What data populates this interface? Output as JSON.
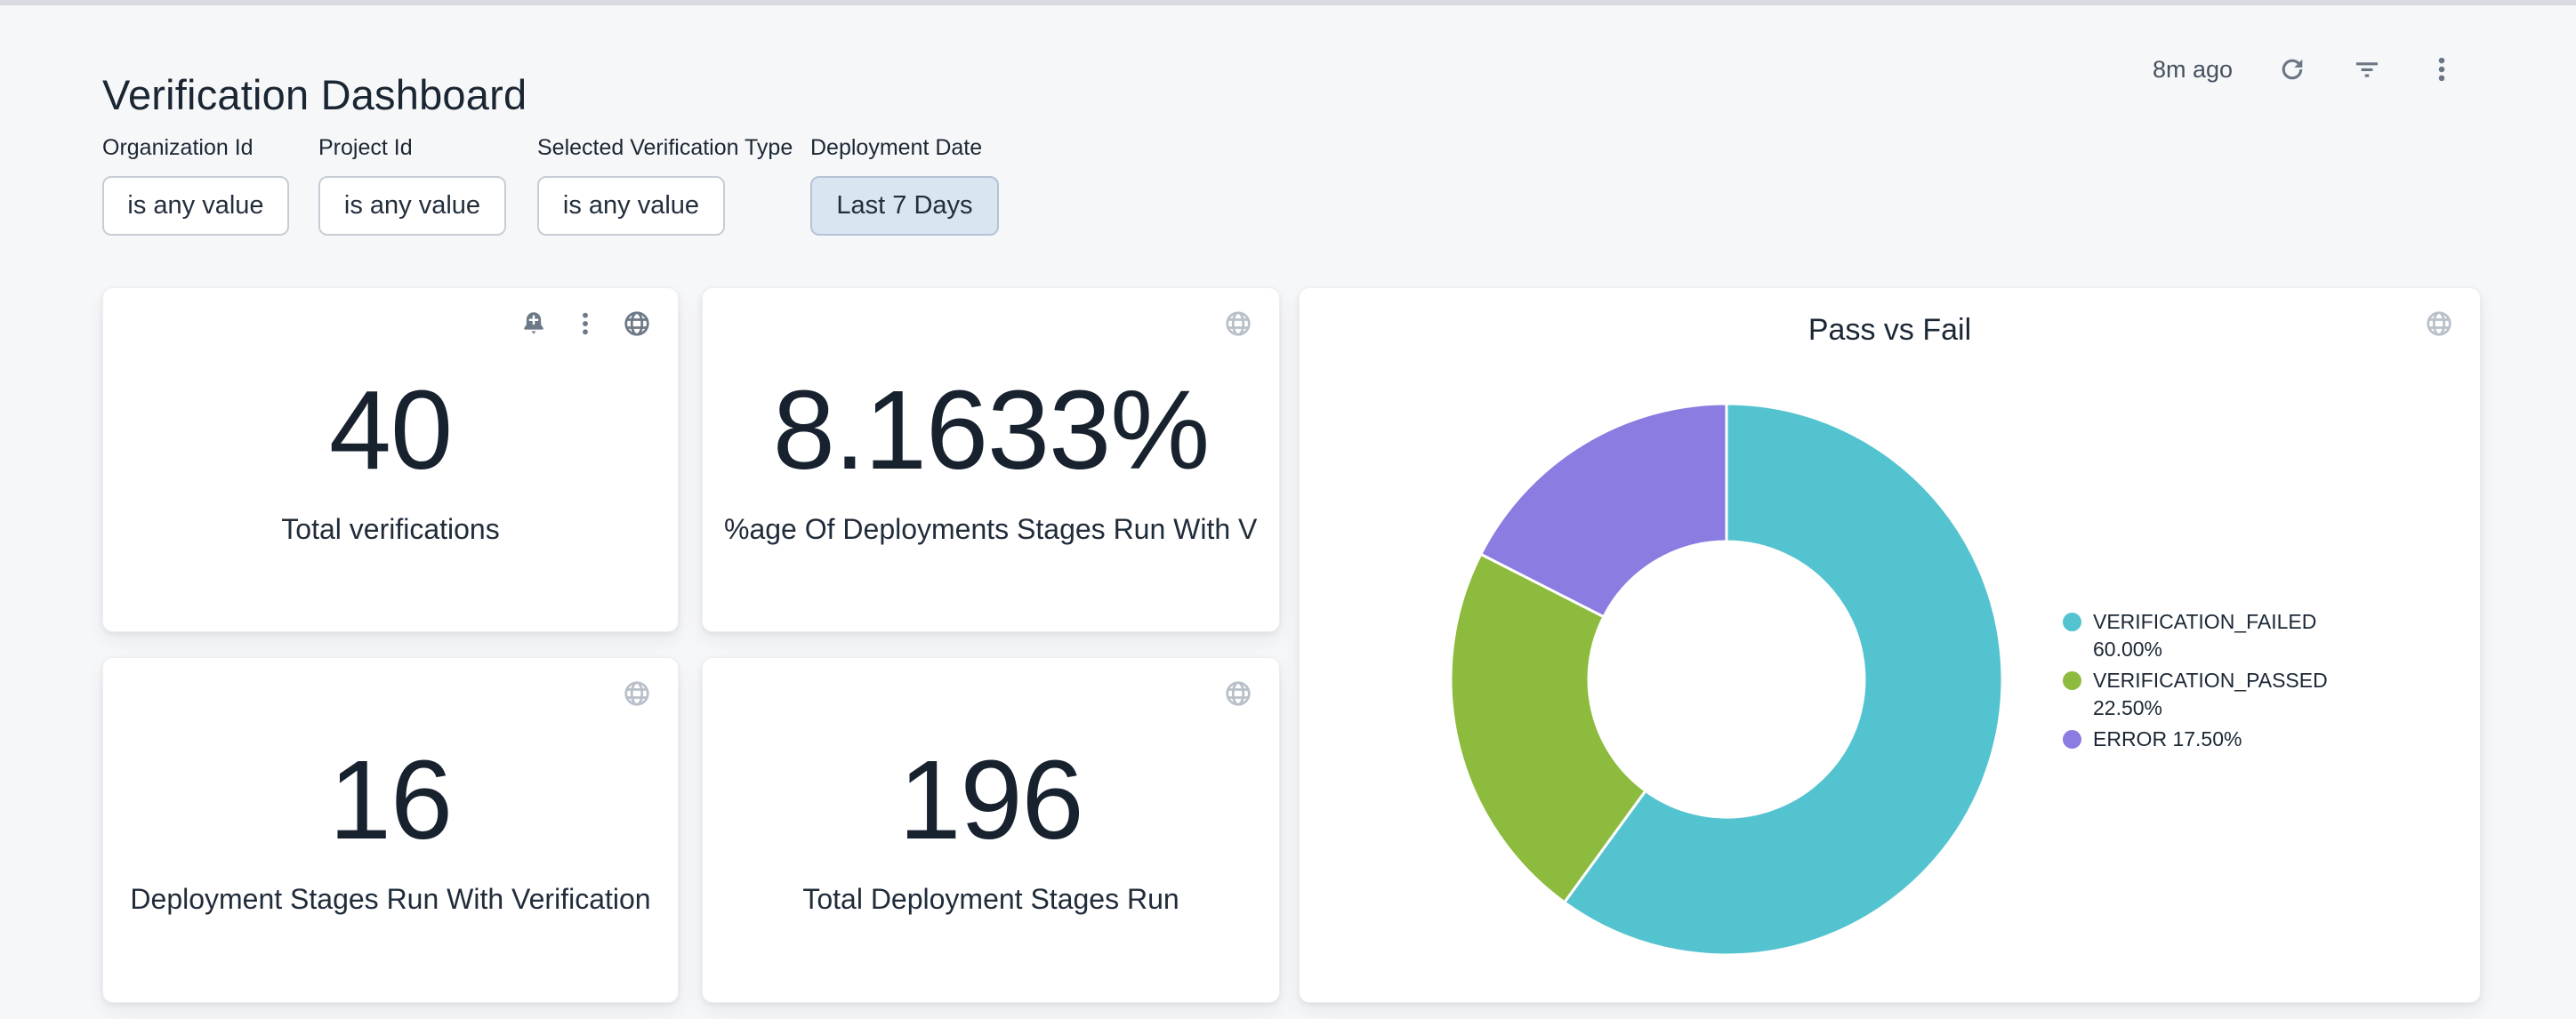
{
  "header": {
    "title": "Verification Dashboard",
    "last_refreshed": "8m ago"
  },
  "filters": [
    {
      "label": "Organization Id",
      "value": "is any value",
      "active": false
    },
    {
      "label": "Project Id",
      "value": "is any value",
      "active": false
    },
    {
      "label": "Selected Verification Type",
      "value": "is any value",
      "active": false
    },
    {
      "label": "Deployment Date",
      "value": "Last 7 Days",
      "active": true
    }
  ],
  "tiles": [
    {
      "value": "40",
      "label": "Total verifications"
    },
    {
      "value": "8.1633%",
      "label": "%age Of Deployments Stages Run With V…"
    },
    {
      "value": "16",
      "label": "Deployment Stages Run With Verification"
    },
    {
      "value": "196",
      "label": "Total Deployment Stages Run"
    }
  ],
  "chart_data": {
    "type": "pie",
    "variant": "donut",
    "title": "Pass vs Fail",
    "series": [
      {
        "name": "VERIFICATION_FAILED",
        "value": 60.0,
        "label": "60.00%",
        "color": "#54C3D0"
      },
      {
        "name": "VERIFICATION_PASSED",
        "value": 22.5,
        "label": "22.50%",
        "color": "#8CBB3D"
      },
      {
        "name": "ERROR",
        "value": 17.5,
        "label": "17.50%",
        "color": "#8A7CE0"
      }
    ],
    "start_angle_deg": 0,
    "direction": "clockwise",
    "inner_radius_ratio": 0.5,
    "legend_position": "right"
  },
  "icons": [
    "refresh-icon",
    "filter-list-icon",
    "kebab-menu-icon",
    "bell-plus-icon",
    "globe-icon"
  ],
  "colors": {
    "page_background": "#f6f7f9",
    "card_background": "#ffffff",
    "text_primary": "#1c2734",
    "icon_gray": "#6e7987",
    "icon_light_gray": "#b9c0c9",
    "active_filter_bg": "#d9e5f1",
    "active_filter_border": "#b6c3d4"
  }
}
